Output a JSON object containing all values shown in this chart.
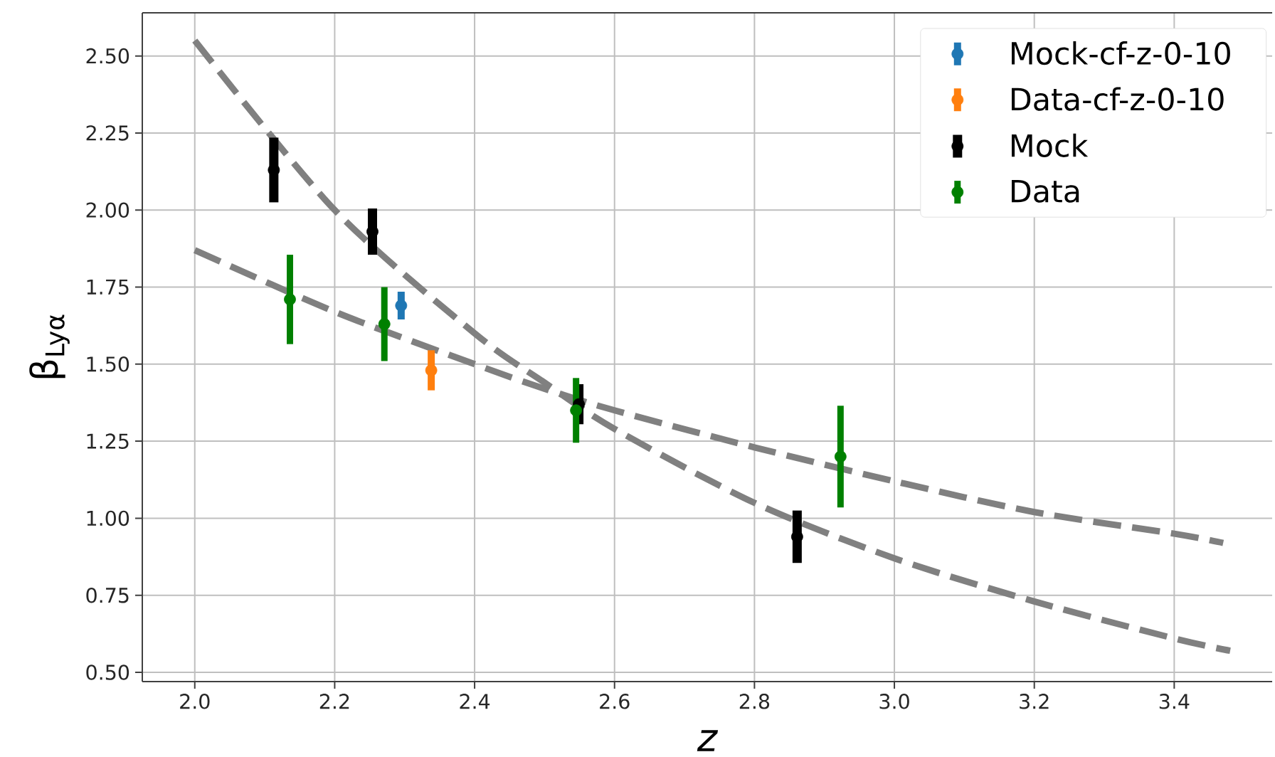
{
  "chart_data": {
    "type": "scatter",
    "xlabel": "z",
    "ylabel": "β$_{Lyα}$",
    "xlim": [
      1.925,
      3.54
    ],
    "ylim": [
      0.47,
      2.64
    ],
    "xticks": [
      {
        "value": 2.0,
        "label": "2.0"
      },
      2.2,
      2.4,
      2.6,
      2.8,
      {
        "value": 3.0,
        "label": "3.0"
      },
      3.2,
      3.4
    ],
    "yticks": [
      {
        "value": 0.5,
        "label": "0.50"
      },
      0.75,
      {
        "value": 1.0,
        "label": "1.00"
      },
      1.25,
      {
        "value": 1.5,
        "label": "1.50"
      },
      1.75,
      {
        "value": 2.0,
        "label": "2.00"
      },
      2.25,
      {
        "value": 2.5,
        "label": "2.50"
      }
    ],
    "grid": true,
    "legend": "top right",
    "series": [
      {
        "type": "line",
        "color": "#808080",
        "line_style": "dashed",
        "x": [
          2.0,
          2.2,
          2.4,
          2.5,
          2.6,
          2.8,
          3.0,
          3.2,
          3.4,
          3.48
        ],
        "values": [
          2.55,
          2.0,
          1.6,
          1.44,
          1.29,
          1.05,
          0.87,
          0.73,
          0.61,
          0.57
        ]
      },
      {
        "type": "line",
        "color": "#808080",
        "line_style": "dashed",
        "x": [
          2.0,
          2.2,
          2.4,
          2.5,
          2.6,
          2.8,
          3.0,
          3.2,
          3.4,
          3.47
        ],
        "values": [
          1.87,
          1.67,
          1.5,
          1.42,
          1.35,
          1.23,
          1.12,
          1.02,
          0.95,
          0.92
        ]
      },
      {
        "name": "Mock-cf-z-0-10",
        "color": "#1f77b4",
        "marker": "circle",
        "x": [
          2.295
        ],
        "values": [
          1.69
        ],
        "errors": [
          0.045
        ]
      },
      {
        "name": "Data-cf-z-0-10",
        "color": "#ff7f0e",
        "marker": "circle",
        "x": [
          2.338
        ],
        "values": [
          1.48
        ],
        "errors": [
          0.065
        ]
      },
      {
        "name": "Mock",
        "color": "#000000",
        "marker": "circle",
        "x": [
          2.113,
          2.254,
          2.549,
          2.861
        ],
        "values": [
          2.13,
          1.93,
          1.37,
          0.94
        ],
        "errors": [
          0.105,
          0.075,
          0.065,
          0.085
        ]
      },
      {
        "name": "Data",
        "color": "#008000",
        "marker": "circle",
        "x": [
          2.136,
          2.271,
          2.545,
          2.923
        ],
        "values": [
          1.71,
          1.63,
          1.35,
          1.2
        ],
        "errors": [
          0.145,
          0.12,
          0.105,
          0.165
        ]
      }
    ]
  }
}
